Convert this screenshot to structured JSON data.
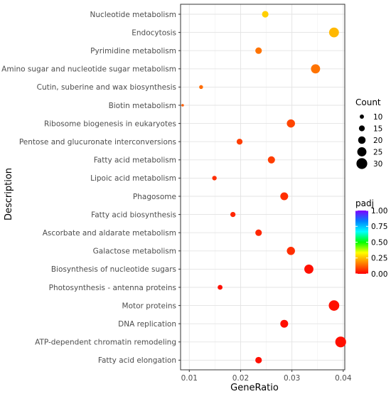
{
  "chart_data": {
    "type": "scatter",
    "xlabel": "GeneRatio",
    "ylabel": "Description",
    "xlim": [
      0.0083,
      0.0403
    ],
    "x_ticks": [
      "0.01",
      "0.02",
      "0.03",
      "0.04"
    ],
    "x_tick_values": [
      0.01,
      0.02,
      0.03,
      0.04
    ],
    "grid": true,
    "legend_position": "right",
    "points": [
      {
        "label": "Nucleotide metabolism",
        "x": 0.0248,
        "count": 17,
        "padj": 0.27
      },
      {
        "label": "Endocytosis",
        "x": 0.0382,
        "count": 27,
        "padj": 0.24
      },
      {
        "label": "Pyrimidine metabolism",
        "x": 0.0235,
        "count": 17,
        "padj": 0.15
      },
      {
        "label": "Amino sugar and nucleotide sugar metabolism",
        "x": 0.0346,
        "count": 25,
        "padj": 0.15
      },
      {
        "label": "Cutin, suberine and wax biosynthesis",
        "x": 0.0123,
        "count": 9,
        "padj": 0.14
      },
      {
        "label": "Biotin metabolism",
        "x": 0.0087,
        "count": 5,
        "padj": 0.12
      },
      {
        "label": "Ribosome biogenesis in eukaryotes",
        "x": 0.0298,
        "count": 22,
        "padj": 0.09
      },
      {
        "label": "Pentose and glucuronate interconversions",
        "x": 0.0198,
        "count": 15,
        "padj": 0.08
      },
      {
        "label": "Fatty acid metabolism",
        "x": 0.026,
        "count": 19,
        "padj": 0.08
      },
      {
        "label": "Lipoic acid metabolism",
        "x": 0.0149,
        "count": 11,
        "padj": 0.06
      },
      {
        "label": "Phagosome",
        "x": 0.0285,
        "count": 21,
        "padj": 0.06
      },
      {
        "label": "Fatty acid biosynthesis",
        "x": 0.0185,
        "count": 13,
        "padj": 0.05
      },
      {
        "label": "Ascorbate and aldarate metabolism",
        "x": 0.0235,
        "count": 17,
        "padj": 0.05
      },
      {
        "label": "Galactose metabolism",
        "x": 0.0298,
        "count": 22,
        "padj": 0.06
      },
      {
        "label": "Biosynthesis of nucleotide sugars",
        "x": 0.0333,
        "count": 25,
        "padj": 0.02
      },
      {
        "label": "Photosynthesis - antenna proteins",
        "x": 0.016,
        "count": 12,
        "padj": 0.02
      },
      {
        "label": "Motor proteins",
        "x": 0.0382,
        "count": 29,
        "padj": 0.02
      },
      {
        "label": "DNA replication",
        "x": 0.0285,
        "count": 21,
        "padj": 0.02
      },
      {
        "label": "ATP-dependent chromatin remodeling",
        "x": 0.0395,
        "count": 30,
        "padj": 0.02
      },
      {
        "label": "Fatty acid elongation",
        "x": 0.0235,
        "count": 17,
        "padj": 0.02
      }
    ],
    "size_legend": {
      "title": "Count",
      "values": [
        10,
        15,
        20,
        25,
        30
      ],
      "labels": [
        "10",
        "15",
        "20",
        "25",
        "30"
      ]
    },
    "color_legend": {
      "title": "padj",
      "range": [
        0,
        1
      ],
      "ticks": [
        1,
        0.75,
        0.5,
        0.25,
        0
      ],
      "labels": [
        "1.00",
        "0.75",
        "0.50",
        "0.25",
        "0.00"
      ],
      "gradient": [
        "#ff0000",
        "#ff8000",
        "#ffff00",
        "#00ff00",
        "#00ffff",
        "#0080ff",
        "#8000ff"
      ]
    }
  }
}
